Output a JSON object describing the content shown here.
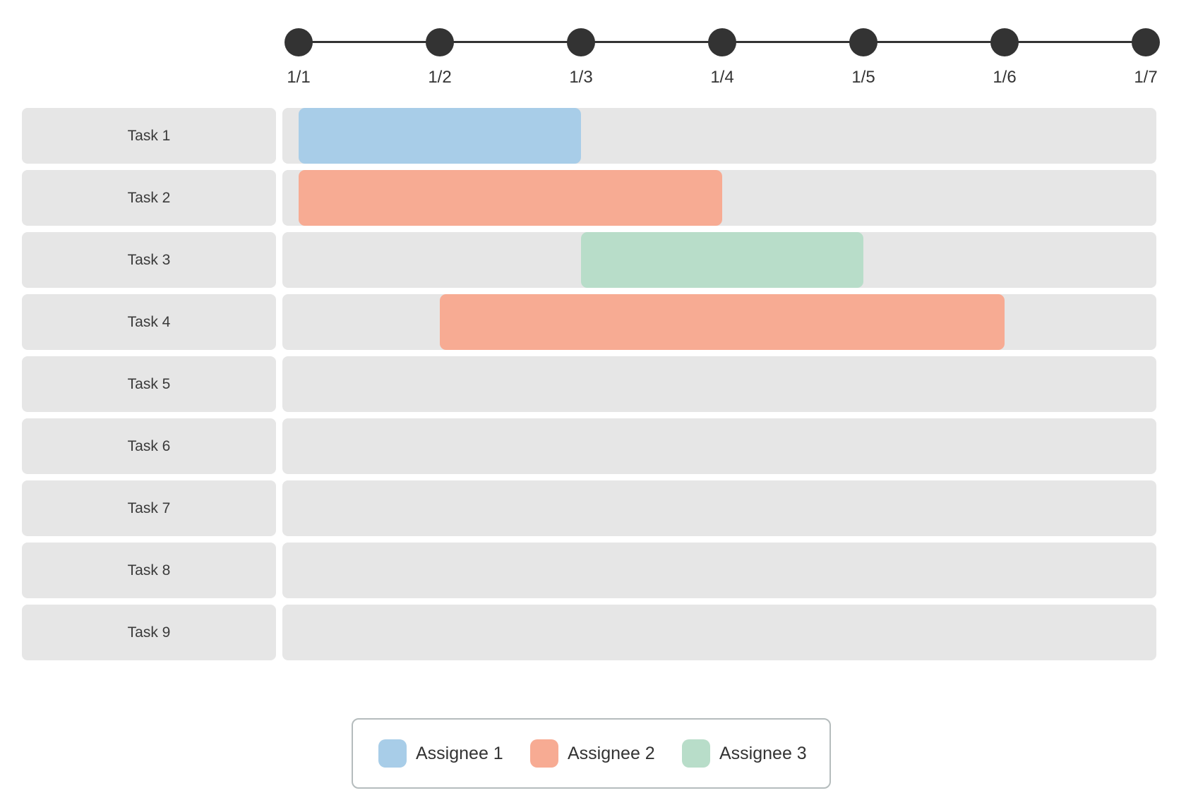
{
  "colors": {
    "row_background": "#e6e6e6",
    "axis": "#333333",
    "text": "#333333",
    "legend_border": "#b5bcbd"
  },
  "chart_data": {
    "type": "bar",
    "subtype": "gantt",
    "title": "",
    "x_ticks": [
      "1/1",
      "1/2",
      "1/3",
      "1/4",
      "1/5",
      "1/6",
      "1/7"
    ],
    "categories": [
      "Task 1",
      "Task 2",
      "Task 3",
      "Task 4",
      "Task 5",
      "Task 6",
      "Task 7",
      "Task 8",
      "Task 9"
    ],
    "tasks": [
      {
        "label": "Task 1",
        "assignee": "Assignee 1",
        "start": "1/1",
        "end": "1/3"
      },
      {
        "label": "Task 2",
        "assignee": "Assignee 2",
        "start": "1/1",
        "end": "1/4"
      },
      {
        "label": "Task 3",
        "assignee": "Assignee 3",
        "start": "1/3",
        "end": "1/5"
      },
      {
        "label": "Task 4",
        "assignee": "Assignee 2",
        "start": "1/2",
        "end": "1/6"
      },
      {
        "label": "Task 5",
        "assignee": null,
        "start": null,
        "end": null
      },
      {
        "label": "Task 6",
        "assignee": null,
        "start": null,
        "end": null
      },
      {
        "label": "Task 7",
        "assignee": null,
        "start": null,
        "end": null
      },
      {
        "label": "Task 8",
        "assignee": null,
        "start": null,
        "end": null
      },
      {
        "label": "Task 9",
        "assignee": null,
        "start": null,
        "end": null
      }
    ],
    "legend": [
      {
        "label": "Assignee 1",
        "color": "#a8cde8"
      },
      {
        "label": "Assignee 2",
        "color": "#f7ab93"
      },
      {
        "label": "Assignee 3",
        "color": "#b8ddc9"
      }
    ],
    "legend_position": "bottom-center",
    "grid": false,
    "axis_range": [
      "1/1",
      "1/7"
    ]
  }
}
